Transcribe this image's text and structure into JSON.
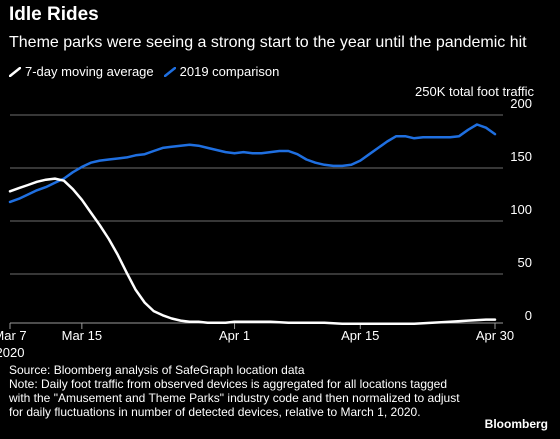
{
  "header": {
    "title": "Idle Rides",
    "subtitle": "Theme parks were seeing a strong start to the year until the pandemic hit",
    "unit_label": "250K total foot traffic"
  },
  "footer": {
    "source": "Source: Bloomberg analysis of SafeGraph location data",
    "note": "Note: Daily foot traffic from observed devices is aggregated for all locations tagged with the \"Amusement and Theme Parks\" industry code and then normalized to adjust for daily fluctuations in number of detected devices, relative to March 1, 2020.",
    "brand": "Bloomberg"
  },
  "colors": {
    "background": "#000000",
    "series_2020": "#ffffff",
    "series_2019": "#1f6fe0",
    "grid": "#6e6e6e",
    "text": "#ffffff"
  },
  "chart_data": {
    "type": "line",
    "title": "Idle Rides",
    "subtitle": "Theme parks were seeing a strong start to the year until the pandemic hit",
    "ylabel": "250K total foot traffic",
    "ylim": [
      0,
      200
    ],
    "yticks": [
      0,
      50,
      100,
      150,
      200
    ],
    "grid": true,
    "legend_position": "top-left",
    "x_start": "2020-03-07",
    "x_end": "2020-04-30",
    "xtick_labels": [
      {
        "date": "2020-03-07",
        "label": "Mar 7",
        "sub": "2020"
      },
      {
        "date": "2020-03-15",
        "label": "Mar 15",
        "sub": ""
      },
      {
        "date": "2020-04-01",
        "label": "Apr 1",
        "sub": ""
      },
      {
        "date": "2020-04-15",
        "label": "Apr 15",
        "sub": ""
      },
      {
        "date": "2020-04-30",
        "label": "Apr 30",
        "sub": ""
      }
    ],
    "series": [
      {
        "name": "7-day moving average",
        "color": "#ffffff",
        "points": [
          [
            "2020-03-07",
            128
          ],
          [
            "2020-03-08",
            131
          ],
          [
            "2020-03-09",
            134
          ],
          [
            "2020-03-10",
            137
          ],
          [
            "2020-03-11",
            139
          ],
          [
            "2020-03-12",
            140
          ],
          [
            "2020-03-13",
            138
          ],
          [
            "2020-03-14",
            130
          ],
          [
            "2020-03-15",
            120
          ],
          [
            "2020-03-16",
            108
          ],
          [
            "2020-03-17",
            96
          ],
          [
            "2020-03-18",
            83
          ],
          [
            "2020-03-19",
            68
          ],
          [
            "2020-03-20",
            51
          ],
          [
            "2020-03-21",
            35
          ],
          [
            "2020-03-22",
            23
          ],
          [
            "2020-03-23",
            15
          ],
          [
            "2020-03-24",
            11
          ],
          [
            "2020-03-25",
            8
          ],
          [
            "2020-03-26",
            6
          ],
          [
            "2020-03-27",
            5
          ],
          [
            "2020-03-28",
            5
          ],
          [
            "2020-03-29",
            4
          ],
          [
            "2020-03-30",
            4
          ],
          [
            "2020-03-31",
            4
          ],
          [
            "2020-04-01",
            5
          ],
          [
            "2020-04-03",
            5
          ],
          [
            "2020-04-05",
            5
          ],
          [
            "2020-04-07",
            4
          ],
          [
            "2020-04-09",
            4
          ],
          [
            "2020-04-11",
            4
          ],
          [
            "2020-04-13",
            3
          ],
          [
            "2020-04-15",
            3
          ],
          [
            "2020-04-17",
            3
          ],
          [
            "2020-04-19",
            3
          ],
          [
            "2020-04-21",
            3
          ],
          [
            "2020-04-23",
            4
          ],
          [
            "2020-04-25",
            5
          ],
          [
            "2020-04-27",
            6
          ],
          [
            "2020-04-29",
            7
          ],
          [
            "2020-04-30",
            7
          ]
        ]
      },
      {
        "name": "2019 comparison",
        "color": "#1f6fe0",
        "points": [
          [
            "2020-03-07",
            118
          ],
          [
            "2020-03-08",
            121
          ],
          [
            "2020-03-09",
            125
          ],
          [
            "2020-03-10",
            129
          ],
          [
            "2020-03-11",
            132
          ],
          [
            "2020-03-12",
            136
          ],
          [
            "2020-03-13",
            140
          ],
          [
            "2020-03-14",
            146
          ],
          [
            "2020-03-15",
            151
          ],
          [
            "2020-03-16",
            155
          ],
          [
            "2020-03-17",
            157
          ],
          [
            "2020-03-18",
            158
          ],
          [
            "2020-03-19",
            159
          ],
          [
            "2020-03-20",
            160
          ],
          [
            "2020-03-21",
            162
          ],
          [
            "2020-03-22",
            163
          ],
          [
            "2020-03-23",
            166
          ],
          [
            "2020-03-24",
            169
          ],
          [
            "2020-03-25",
            170
          ],
          [
            "2020-03-26",
            171
          ],
          [
            "2020-03-27",
            172
          ],
          [
            "2020-03-28",
            171
          ],
          [
            "2020-03-29",
            169
          ],
          [
            "2020-03-30",
            167
          ],
          [
            "2020-03-31",
            165
          ],
          [
            "2020-04-01",
            164
          ],
          [
            "2020-04-02",
            165
          ],
          [
            "2020-04-03",
            164
          ],
          [
            "2020-04-04",
            164
          ],
          [
            "2020-04-05",
            165
          ],
          [
            "2020-04-06",
            166
          ],
          [
            "2020-04-07",
            166
          ],
          [
            "2020-04-08",
            163
          ],
          [
            "2020-04-09",
            158
          ],
          [
            "2020-04-10",
            155
          ],
          [
            "2020-04-11",
            153
          ],
          [
            "2020-04-12",
            152
          ],
          [
            "2020-04-13",
            152
          ],
          [
            "2020-04-14",
            153
          ],
          [
            "2020-04-15",
            157
          ],
          [
            "2020-04-16",
            163
          ],
          [
            "2020-04-17",
            169
          ],
          [
            "2020-04-18",
            175
          ],
          [
            "2020-04-19",
            180
          ],
          [
            "2020-04-20",
            180
          ],
          [
            "2020-04-21",
            178
          ],
          [
            "2020-04-22",
            179
          ],
          [
            "2020-04-23",
            179
          ],
          [
            "2020-04-24",
            179
          ],
          [
            "2020-04-25",
            179
          ],
          [
            "2020-04-26",
            180
          ],
          [
            "2020-04-27",
            186
          ],
          [
            "2020-04-28",
            191
          ],
          [
            "2020-04-29",
            188
          ],
          [
            "2020-04-30",
            182
          ]
        ]
      }
    ]
  }
}
